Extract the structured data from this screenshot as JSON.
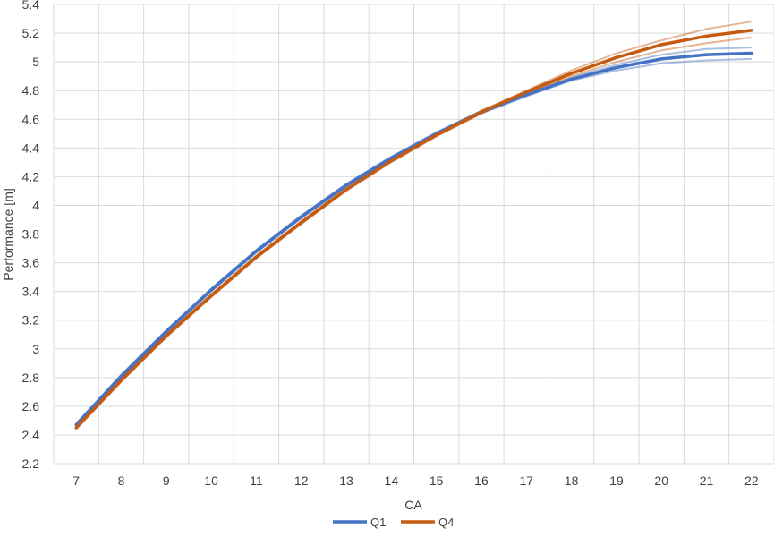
{
  "chart_data": {
    "type": "line",
    "title": "",
    "xlabel": "CA",
    "ylabel": "Performance [m]",
    "x": [
      7,
      8,
      9,
      10,
      11,
      12,
      13,
      14,
      15,
      16,
      17,
      18,
      19,
      20,
      21,
      22
    ],
    "ylim": [
      2.2,
      5.4
    ],
    "yticks": [
      "2.2",
      "2.4",
      "2.6",
      "2.8",
      "3",
      "3.2",
      "3.4",
      "3.6",
      "3.8",
      "4",
      "4.2",
      "4.4",
      "4.6",
      "4.8",
      "5",
      "5.2",
      "5.4"
    ],
    "grid": true,
    "legend_position": "bottom",
    "series": [
      {
        "name": "Q1",
        "color": "#4472C4",
        "values": [
          2.47,
          2.81,
          3.12,
          3.41,
          3.68,
          3.92,
          4.14,
          4.33,
          4.5,
          4.65,
          4.77,
          4.88,
          4.96,
          5.02,
          5.05,
          5.06
        ],
        "band_upper": [
          2.48,
          2.82,
          3.13,
          3.42,
          3.69,
          3.93,
          4.15,
          4.34,
          4.51,
          4.66,
          4.78,
          4.89,
          4.98,
          5.05,
          5.09,
          5.1
        ],
        "band_lower": [
          2.46,
          2.8,
          3.11,
          3.4,
          3.67,
          3.91,
          4.13,
          4.32,
          4.49,
          4.64,
          4.76,
          4.87,
          4.94,
          4.99,
          5.01,
          5.02
        ]
      },
      {
        "name": "Q4",
        "color": "#C55A11",
        "values": [
          2.45,
          2.78,
          3.09,
          3.37,
          3.64,
          3.88,
          4.11,
          4.31,
          4.49,
          4.65,
          4.79,
          4.92,
          5.03,
          5.12,
          5.18,
          5.22
        ],
        "band_upper": [
          2.46,
          2.79,
          3.1,
          3.38,
          3.65,
          3.89,
          4.12,
          4.32,
          4.5,
          4.66,
          4.8,
          4.94,
          5.06,
          5.15,
          5.23,
          5.28
        ],
        "band_lower": [
          2.44,
          2.77,
          3.08,
          3.36,
          3.63,
          3.87,
          4.1,
          4.3,
          4.48,
          4.64,
          4.78,
          4.9,
          5.0,
          5.08,
          5.13,
          5.17
        ]
      }
    ]
  }
}
